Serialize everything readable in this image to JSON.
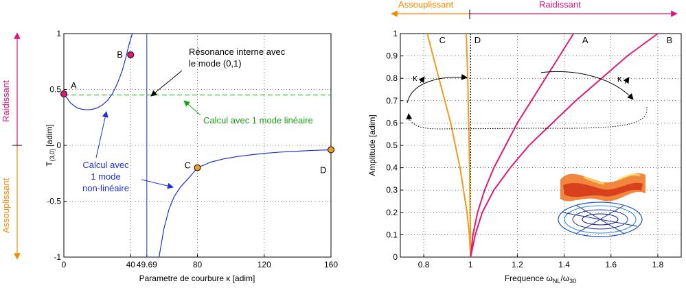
{
  "chart_data": [
    {
      "type": "line",
      "xlabel": "Parametre de courbure κ [adim]",
      "ylabel_main": "T",
      "ylabel_sub": "(3,0)",
      "ylabel_unit": "[adim]",
      "xlim": [
        0,
        160
      ],
      "ylim": [
        -1,
        1
      ],
      "xticks": [
        "0",
        "40",
        "49.69",
        "80",
        "120",
        "160"
      ],
      "xtick_values": [
        0,
        40,
        49.69,
        80,
        120,
        160
      ],
      "yticks": [
        "-1",
        "-0.5",
        "0",
        "0.5",
        "1"
      ],
      "ytick_values": [
        -1,
        -0.5,
        0,
        0.5,
        1
      ],
      "grid": true,
      "side_arrow": {
        "up_label": "Raidissant",
        "down_label": "Assouplissant",
        "up_color": "#e0147a",
        "down_color": "#f28a00"
      },
      "vertical_line": {
        "x": 49.69,
        "color": "#1f2fd6"
      },
      "linear_curve": {
        "y": 0.45,
        "color": "#1aa01a",
        "label": "Calcul avec 1 mode linéaire"
      },
      "nonlinear_label": [
        "Calcul avec",
        "1 mode",
        "non-linéaire"
      ],
      "nonlinear_color": "#1f2fd6",
      "annotation_resonance": [
        "Résonance interne avec",
        "le mode (0,1)"
      ],
      "branch_upper": [
        [
          0,
          0.46
        ],
        [
          2,
          0.42
        ],
        [
          4,
          0.38
        ],
        [
          6,
          0.355
        ],
        [
          8,
          0.335
        ],
        [
          11,
          0.322
        ],
        [
          14,
          0.318
        ],
        [
          17,
          0.322
        ],
        [
          20,
          0.335
        ],
        [
          23,
          0.36
        ],
        [
          26,
          0.4
        ],
        [
          29,
          0.46
        ],
        [
          32,
          0.55
        ],
        [
          35,
          0.67
        ],
        [
          37,
          0.78
        ],
        [
          39,
          0.9
        ],
        [
          41,
          1.0
        ]
      ],
      "branch_lower": [
        [
          57,
          -1.0
        ],
        [
          60,
          -0.74
        ],
        [
          63,
          -0.57
        ],
        [
          66,
          -0.46
        ],
        [
          70,
          -0.37
        ],
        [
          75,
          -0.29
        ],
        [
          80,
          -0.2
        ],
        [
          88,
          -0.15
        ],
        [
          96,
          -0.12
        ],
        [
          104,
          -0.1
        ],
        [
          112,
          -0.085
        ],
        [
          120,
          -0.072
        ],
        [
          130,
          -0.06
        ],
        [
          140,
          -0.052
        ],
        [
          150,
          -0.045
        ],
        [
          160,
          -0.04
        ]
      ],
      "points": [
        {
          "label": "A",
          "x": 0,
          "y": 0.46,
          "color": "#e01a70"
        },
        {
          "label": "B",
          "x": 40,
          "y": 0.81,
          "color": "#e01a70"
        },
        {
          "label": "C",
          "x": 80,
          "y": -0.2,
          "color": "#f29a1a"
        },
        {
          "label": "D",
          "x": 160,
          "y": -0.04,
          "color": "#f29a1a"
        }
      ]
    },
    {
      "type": "line",
      "xlabel_main": "Frequence ω",
      "xlabel_sub1": "NL",
      "xlabel_mid": "/ω",
      "xlabel_sub2": "30",
      "ylabel": "Amplitude [adim]",
      "xlim": [
        0.7,
        1.9
      ],
      "ylim": [
        0,
        1
      ],
      "xticks": [
        "0.8",
        "1",
        "1.2",
        "1.4",
        "1.6",
        "1.8"
      ],
      "xtick_values": [
        0.8,
        1.0,
        1.2,
        1.4,
        1.6,
        1.8
      ],
      "yticks": [
        "0",
        "0.1",
        "0.2",
        "0.3",
        "0.4",
        "0.5",
        "0.6",
        "0.7",
        "0.8",
        "0.9",
        "1"
      ],
      "ytick_values": [
        0,
        0.1,
        0.2,
        0.3,
        0.4,
        0.5,
        0.6,
        0.7,
        0.8,
        0.9,
        1
      ],
      "grid": true,
      "top_arrow": {
        "left_label": "Assouplissant",
        "right_label": "Raidissant",
        "left_color": "#f28a00",
        "right_color": "#e0147a"
      },
      "kappa_label": "κ",
      "series": [
        {
          "name": "C",
          "color": "#f29a1a",
          "points": [
            [
              1.0,
              0
            ],
            [
              0.995,
              0.1
            ],
            [
              0.985,
              0.2
            ],
            [
              0.97,
              0.3
            ],
            [
              0.955,
              0.4
            ],
            [
              0.935,
              0.5
            ],
            [
              0.915,
              0.6
            ],
            [
              0.89,
              0.7
            ],
            [
              0.865,
              0.8
            ],
            [
              0.84,
              0.9
            ],
            [
              0.815,
              1.0
            ]
          ]
        },
        {
          "name": "D",
          "color": "#f29a1a",
          "points": [
            [
              1.0,
              0
            ],
            [
              0.999,
              0.1
            ],
            [
              0.998,
              0.2
            ],
            [
              0.997,
              0.3
            ],
            [
              0.996,
              0.4
            ],
            [
              0.994,
              0.5
            ],
            [
              0.992,
              0.6
            ],
            [
              0.99,
              0.7
            ],
            [
              0.988,
              0.8
            ],
            [
              0.985,
              0.9
            ],
            [
              0.982,
              1.0
            ]
          ]
        },
        {
          "name": "A",
          "color": "#e01a70",
          "points": [
            [
              1.0,
              0
            ],
            [
              1.01,
              0.1
            ],
            [
              1.03,
              0.2
            ],
            [
              1.06,
              0.3
            ],
            [
              1.1,
              0.4
            ],
            [
              1.15,
              0.5
            ],
            [
              1.2,
              0.6
            ],
            [
              1.26,
              0.7
            ],
            [
              1.32,
              0.8
            ],
            [
              1.38,
              0.9
            ],
            [
              1.44,
              1.0
            ]
          ]
        },
        {
          "name": "B",
          "color": "#e01a70",
          "points": [
            [
              1.0,
              0
            ],
            [
              1.02,
              0.1
            ],
            [
              1.05,
              0.2
            ],
            [
              1.1,
              0.3
            ],
            [
              1.17,
              0.4
            ],
            [
              1.25,
              0.5
            ],
            [
              1.35,
              0.6
            ],
            [
              1.45,
              0.7
            ],
            [
              1.56,
              0.8
            ],
            [
              1.67,
              0.9
            ],
            [
              1.8,
              1.0
            ]
          ]
        }
      ],
      "series_labels": [
        {
          "text": "C",
          "x": 0.88,
          "y": 0.97
        },
        {
          "text": "D",
          "x": 1.03,
          "y": 0.97
        },
        {
          "text": "A",
          "x": 1.49,
          "y": 0.97
        },
        {
          "text": "B",
          "x": 1.85,
          "y": 0.97
        }
      ]
    }
  ]
}
